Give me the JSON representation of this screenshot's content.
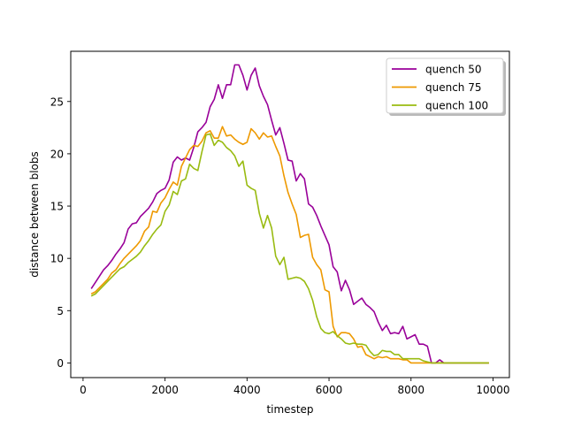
{
  "chart_data": {
    "type": "line",
    "title": "",
    "xlabel": "timestep",
    "ylabel": "distance between blobs",
    "xlim": [
      -300,
      10400
    ],
    "ylim": [
      -1.4,
      29.8
    ],
    "xticks": [
      0,
      2000,
      4000,
      6000,
      8000,
      10000
    ],
    "xtick_labels": [
      "0",
      "2000",
      "4000",
      "6000",
      "8000",
      "10000"
    ],
    "yticks": [
      0,
      5,
      10,
      15,
      20,
      25
    ],
    "ytick_labels": [
      "0",
      "5",
      "10",
      "15",
      "20",
      "25"
    ],
    "grid": false,
    "legend_position": "top-right",
    "series": [
      {
        "name": "quench 50",
        "color": "#990099",
        "x": [
          200,
          300,
          400,
          500,
          600,
          700,
          800,
          900,
          1000,
          1100,
          1200,
          1300,
          1400,
          1500,
          1600,
          1700,
          1800,
          1900,
          2000,
          2100,
          2200,
          2300,
          2400,
          2500,
          2600,
          2700,
          2800,
          2900,
          3000,
          3100,
          3200,
          3300,
          3400,
          3500,
          3600,
          3700,
          3800,
          3900,
          4000,
          4100,
          4200,
          4300,
          4400,
          4500,
          4600,
          4700,
          4800,
          4900,
          5000,
          5100,
          5200,
          5300,
          5400,
          5500,
          5600,
          5700,
          5800,
          5900,
          6000,
          6100,
          6200,
          6300,
          6400,
          6500,
          6600,
          6700,
          6800,
          6900,
          7000,
          7100,
          7200,
          7300,
          7400,
          7500,
          7600,
          7700,
          7800,
          7900,
          8000,
          8100,
          8200,
          8300,
          8400,
          8500,
          8600,
          8700,
          8800,
          8900,
          9000,
          9200,
          9400,
          9600,
          9800,
          9900
        ],
        "y": [
          7.1,
          7.7,
          8.3,
          8.9,
          9.3,
          9.8,
          10.4,
          10.9,
          11.5,
          12.8,
          13.3,
          13.4,
          14.0,
          14.4,
          14.8,
          15.4,
          16.2,
          16.5,
          16.7,
          17.5,
          19.2,
          19.7,
          19.4,
          19.6,
          19.4,
          20.6,
          22.1,
          22.5,
          23.0,
          24.5,
          25.2,
          26.6,
          25.3,
          26.6,
          26.6,
          28.5,
          28.5,
          27.5,
          26.1,
          27.5,
          28.2,
          26.5,
          25.5,
          24.7,
          23.2,
          21.8,
          22.5,
          21.0,
          19.4,
          19.3,
          17.4,
          18.1,
          17.6,
          15.2,
          14.9,
          14.1,
          13.1,
          12.2,
          11.3,
          9.2,
          8.7,
          6.9,
          7.9,
          7.0,
          5.6,
          5.9,
          6.2,
          5.6,
          5.3,
          4.9,
          3.9,
          3.1,
          3.6,
          2.8,
          2.9,
          2.8,
          3.5,
          2.3,
          2.5,
          2.7,
          1.8,
          1.8,
          1.6,
          0.0,
          0.0,
          0.3,
          0.0,
          0.0,
          0.0,
          0.0,
          0.0,
          0.0,
          0.0,
          0.0
        ]
      },
      {
        "name": "quench 75",
        "color": "#ee9900",
        "x": [
          200,
          300,
          400,
          500,
          600,
          700,
          800,
          900,
          1000,
          1100,
          1200,
          1300,
          1400,
          1500,
          1600,
          1700,
          1800,
          1900,
          2000,
          2100,
          2200,
          2300,
          2400,
          2500,
          2600,
          2700,
          2800,
          2900,
          3000,
          3100,
          3200,
          3300,
          3400,
          3500,
          3600,
          3700,
          3800,
          3900,
          4000,
          4100,
          4200,
          4300,
          4400,
          4500,
          4600,
          4700,
          4800,
          4900,
          5000,
          5100,
          5200,
          5300,
          5400,
          5500,
          5600,
          5700,
          5800,
          5900,
          6000,
          6100,
          6200,
          6300,
          6400,
          6500,
          6600,
          6700,
          6800,
          6900,
          7000,
          7100,
          7200,
          7300,
          7400,
          7500,
          7600,
          7700,
          7800,
          7900,
          8000,
          8100,
          8200,
          8300,
          8400,
          8500,
          8600,
          8700,
          8800,
          8900,
          9000,
          9200,
          9400,
          9600,
          9800,
          9900
        ],
        "y": [
          6.6,
          6.8,
          7.2,
          7.6,
          8.0,
          8.6,
          8.9,
          9.5,
          10.0,
          10.4,
          10.8,
          11.2,
          11.7,
          12.6,
          13.0,
          14.5,
          14.4,
          15.3,
          15.8,
          16.6,
          17.3,
          17.0,
          18.8,
          19.6,
          20.4,
          20.8,
          20.7,
          21.2,
          22.0,
          22.2,
          21.5,
          21.5,
          22.6,
          21.7,
          21.8,
          21.4,
          21.1,
          20.9,
          21.1,
          22.4,
          22.0,
          21.4,
          22.0,
          21.6,
          21.7,
          20.7,
          19.8,
          17.9,
          16.3,
          15.2,
          14.2,
          12.0,
          12.2,
          12.3,
          10.1,
          9.4,
          8.9,
          7.0,
          6.8,
          3.5,
          2.5,
          2.9,
          2.9,
          2.8,
          2.3,
          1.5,
          1.6,
          0.8,
          0.6,
          0.4,
          0.6,
          0.5,
          0.6,
          0.4,
          0.4,
          0.4,
          0.3,
          0.3,
          0.0,
          0.0,
          0.0,
          0.0,
          0.0,
          0.0,
          0.0,
          0.0,
          0.0,
          0.0,
          0.0,
          0.0,
          0.0,
          0.0,
          0.0,
          0.0
        ]
      },
      {
        "name": "quench 100",
        "color": "#99bb11",
        "x": [
          200,
          300,
          400,
          500,
          600,
          700,
          800,
          900,
          1000,
          1100,
          1200,
          1300,
          1400,
          1500,
          1600,
          1700,
          1800,
          1900,
          2000,
          2100,
          2200,
          2300,
          2400,
          2500,
          2600,
          2700,
          2800,
          2900,
          3000,
          3100,
          3200,
          3300,
          3400,
          3500,
          3600,
          3700,
          3800,
          3900,
          4000,
          4100,
          4200,
          4300,
          4400,
          4500,
          4600,
          4700,
          4800,
          4900,
          5000,
          5100,
          5200,
          5300,
          5400,
          5500,
          5600,
          5700,
          5800,
          5900,
          6000,
          6100,
          6200,
          6300,
          6400,
          6500,
          6600,
          6700,
          6800,
          6900,
          7000,
          7100,
          7200,
          7300,
          7400,
          7500,
          7600,
          7700,
          7800,
          7900,
          8000,
          8100,
          8200,
          8300,
          8400,
          8500,
          8600,
          8700,
          8800,
          8900,
          9000,
          9200,
          9400,
          9600,
          9800,
          9900
        ],
        "y": [
          6.4,
          6.6,
          7.0,
          7.4,
          7.8,
          8.2,
          8.6,
          9.0,
          9.2,
          9.6,
          9.9,
          10.2,
          10.6,
          11.2,
          11.7,
          12.3,
          12.8,
          13.2,
          14.5,
          15.1,
          16.4,
          16.1,
          17.4,
          17.6,
          19.0,
          18.6,
          18.4,
          20.2,
          21.8,
          21.9,
          20.8,
          21.3,
          21.1,
          20.6,
          20.3,
          19.8,
          18.8,
          19.3,
          17.0,
          16.7,
          16.5,
          14.3,
          12.9,
          14.1,
          12.9,
          10.2,
          9.4,
          10.1,
          8.0,
          8.1,
          8.2,
          8.1,
          7.8,
          7.1,
          6.0,
          4.4,
          3.3,
          2.9,
          2.8,
          3.0,
          2.6,
          2.3,
          1.9,
          1.8,
          1.9,
          1.8,
          1.8,
          1.7,
          1.1,
          0.7,
          0.8,
          1.2,
          1.1,
          1.1,
          0.8,
          0.8,
          0.4,
          0.4,
          0.4,
          0.4,
          0.4,
          0.2,
          0.1,
          0.0,
          0.0,
          0.0,
          0.0,
          0.0,
          0.0,
          0.0,
          0.0,
          0.0,
          0.0,
          0.0
        ]
      }
    ]
  }
}
